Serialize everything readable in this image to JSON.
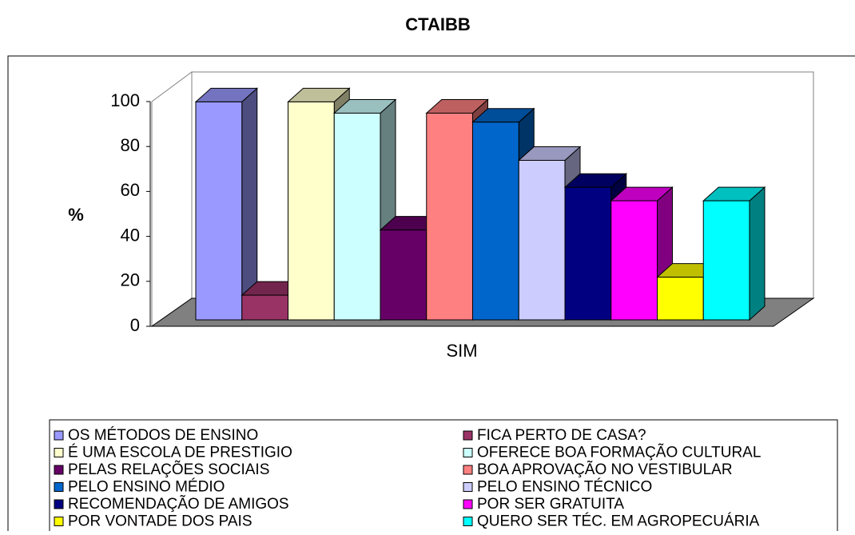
{
  "chart_data": {
    "type": "bar3d",
    "title": "CTAIBB",
    "y_label": "%",
    "categories": [
      "SIM"
    ],
    "ylim": [
      0,
      100
    ],
    "yticks": [
      0,
      20,
      40,
      60,
      80,
      100
    ],
    "legend": "bottom",
    "series": [
      {
        "name": "OS MÉTODOS DE ENSINO",
        "color": "#9999ff",
        "values": [
          97
        ]
      },
      {
        "name": "FICA PERTO DE CASA?",
        "color": "#993366",
        "values": [
          11
        ]
      },
      {
        "name": "É UMA ESCOLA DE PRESTIGIO",
        "color": "#ffffcc",
        "values": [
          97
        ]
      },
      {
        "name": "OFERECE BOA FORMAÇÃO CULTURAL",
        "color": "#ccffff",
        "values": [
          92
        ]
      },
      {
        "name": "PELAS RELAÇÕES SOCIAIS",
        "color": "#660066",
        "values": [
          40
        ]
      },
      {
        "name": "BOA APROVAÇÃO NO VESTIBULAR",
        "color": "#ff8080",
        "values": [
          92
        ]
      },
      {
        "name": "PELO ENSINO MÉDIO",
        "color": "#0066cc",
        "values": [
          88
        ]
      },
      {
        "name": "PELO ENSINO TÉCNICO",
        "color": "#ccccff",
        "values": [
          71
        ]
      },
      {
        "name": "RECOMENDAÇÃO DE AMIGOS",
        "color": "#000080",
        "values": [
          59
        ]
      },
      {
        "name": "POR SER GRATUITA",
        "color": "#ff00ff",
        "values": [
          53
        ]
      },
      {
        "name": "POR VONTADE DOS PAIS",
        "color": "#ffff00",
        "values": [
          19
        ]
      },
      {
        "name": "QUERO SER TÉC. EM AGROPECUÁRIA",
        "color": "#00ffff",
        "values": [
          53
        ]
      }
    ]
  }
}
